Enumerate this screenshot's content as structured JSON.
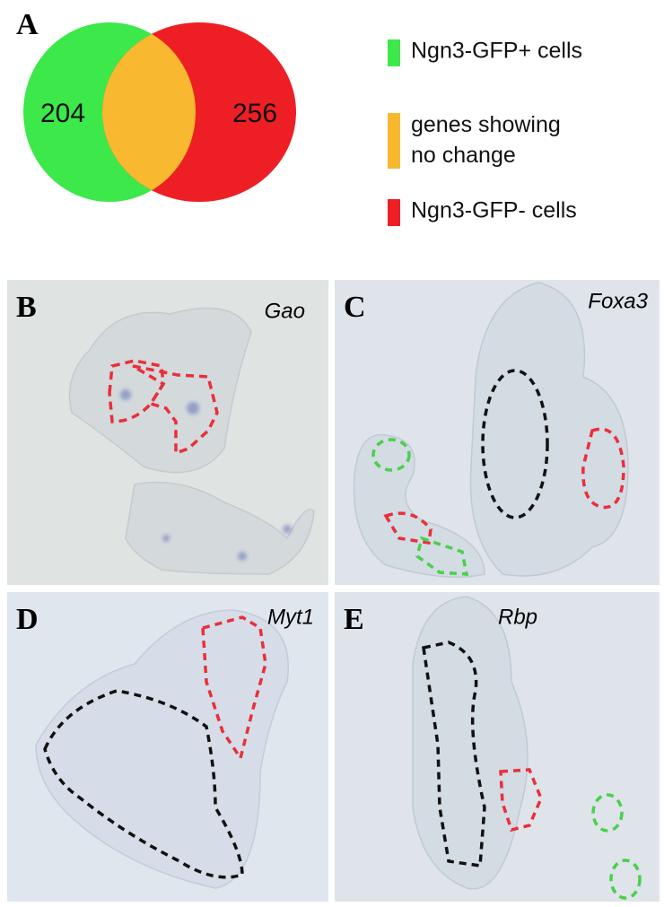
{
  "panel_a": {
    "label": "A",
    "venn": {
      "left": 204,
      "right": 256
    },
    "legend": [
      {
        "label": "Ngn3-GFP+ cells",
        "color": "#3de84a"
      },
      {
        "label": "genes showing no change",
        "color": "#f8b830"
      },
      {
        "label": "Ngn3-GFP- cells",
        "color": "#ee1f24"
      }
    ]
  },
  "images": [
    {
      "label": "B",
      "gene": "Gao"
    },
    {
      "label": "C",
      "gene": "Foxa3"
    },
    {
      "label": "D",
      "gene": "Myt1"
    },
    {
      "label": "E",
      "gene": "Rbp"
    }
  ]
}
